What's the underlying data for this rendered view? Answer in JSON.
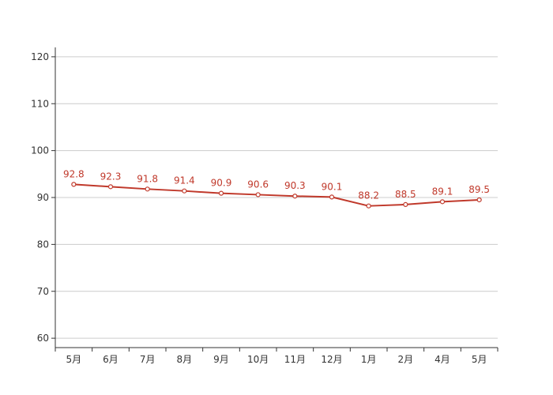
{
  "chart_data": {
    "type": "line",
    "title": "",
    "xlabel": "",
    "ylabel": "",
    "categories": [
      "5月",
      "6月",
      "7月",
      "8月",
      "9月",
      "10月",
      "11月",
      "12月",
      "1月",
      "2月",
      "4月",
      "5月"
    ],
    "series": [
      {
        "values": [
          92.8,
          92.3,
          91.8,
          91.4,
          90.9,
          90.6,
          90.3,
          90.1,
          88.2,
          88.5,
          89.1,
          89.5
        ]
      }
    ],
    "ylim": [
      58,
      122
    ],
    "yticks": [
      60,
      70,
      80,
      90,
      100,
      110,
      120
    ],
    "grid": true,
    "legend": "none",
    "data_labels": true,
    "colors": {
      "line": "#c0392b",
      "marker_fill": "#ffffff",
      "label": "#c0392b",
      "grid": "#cccccc",
      "axis": "#333333"
    }
  }
}
